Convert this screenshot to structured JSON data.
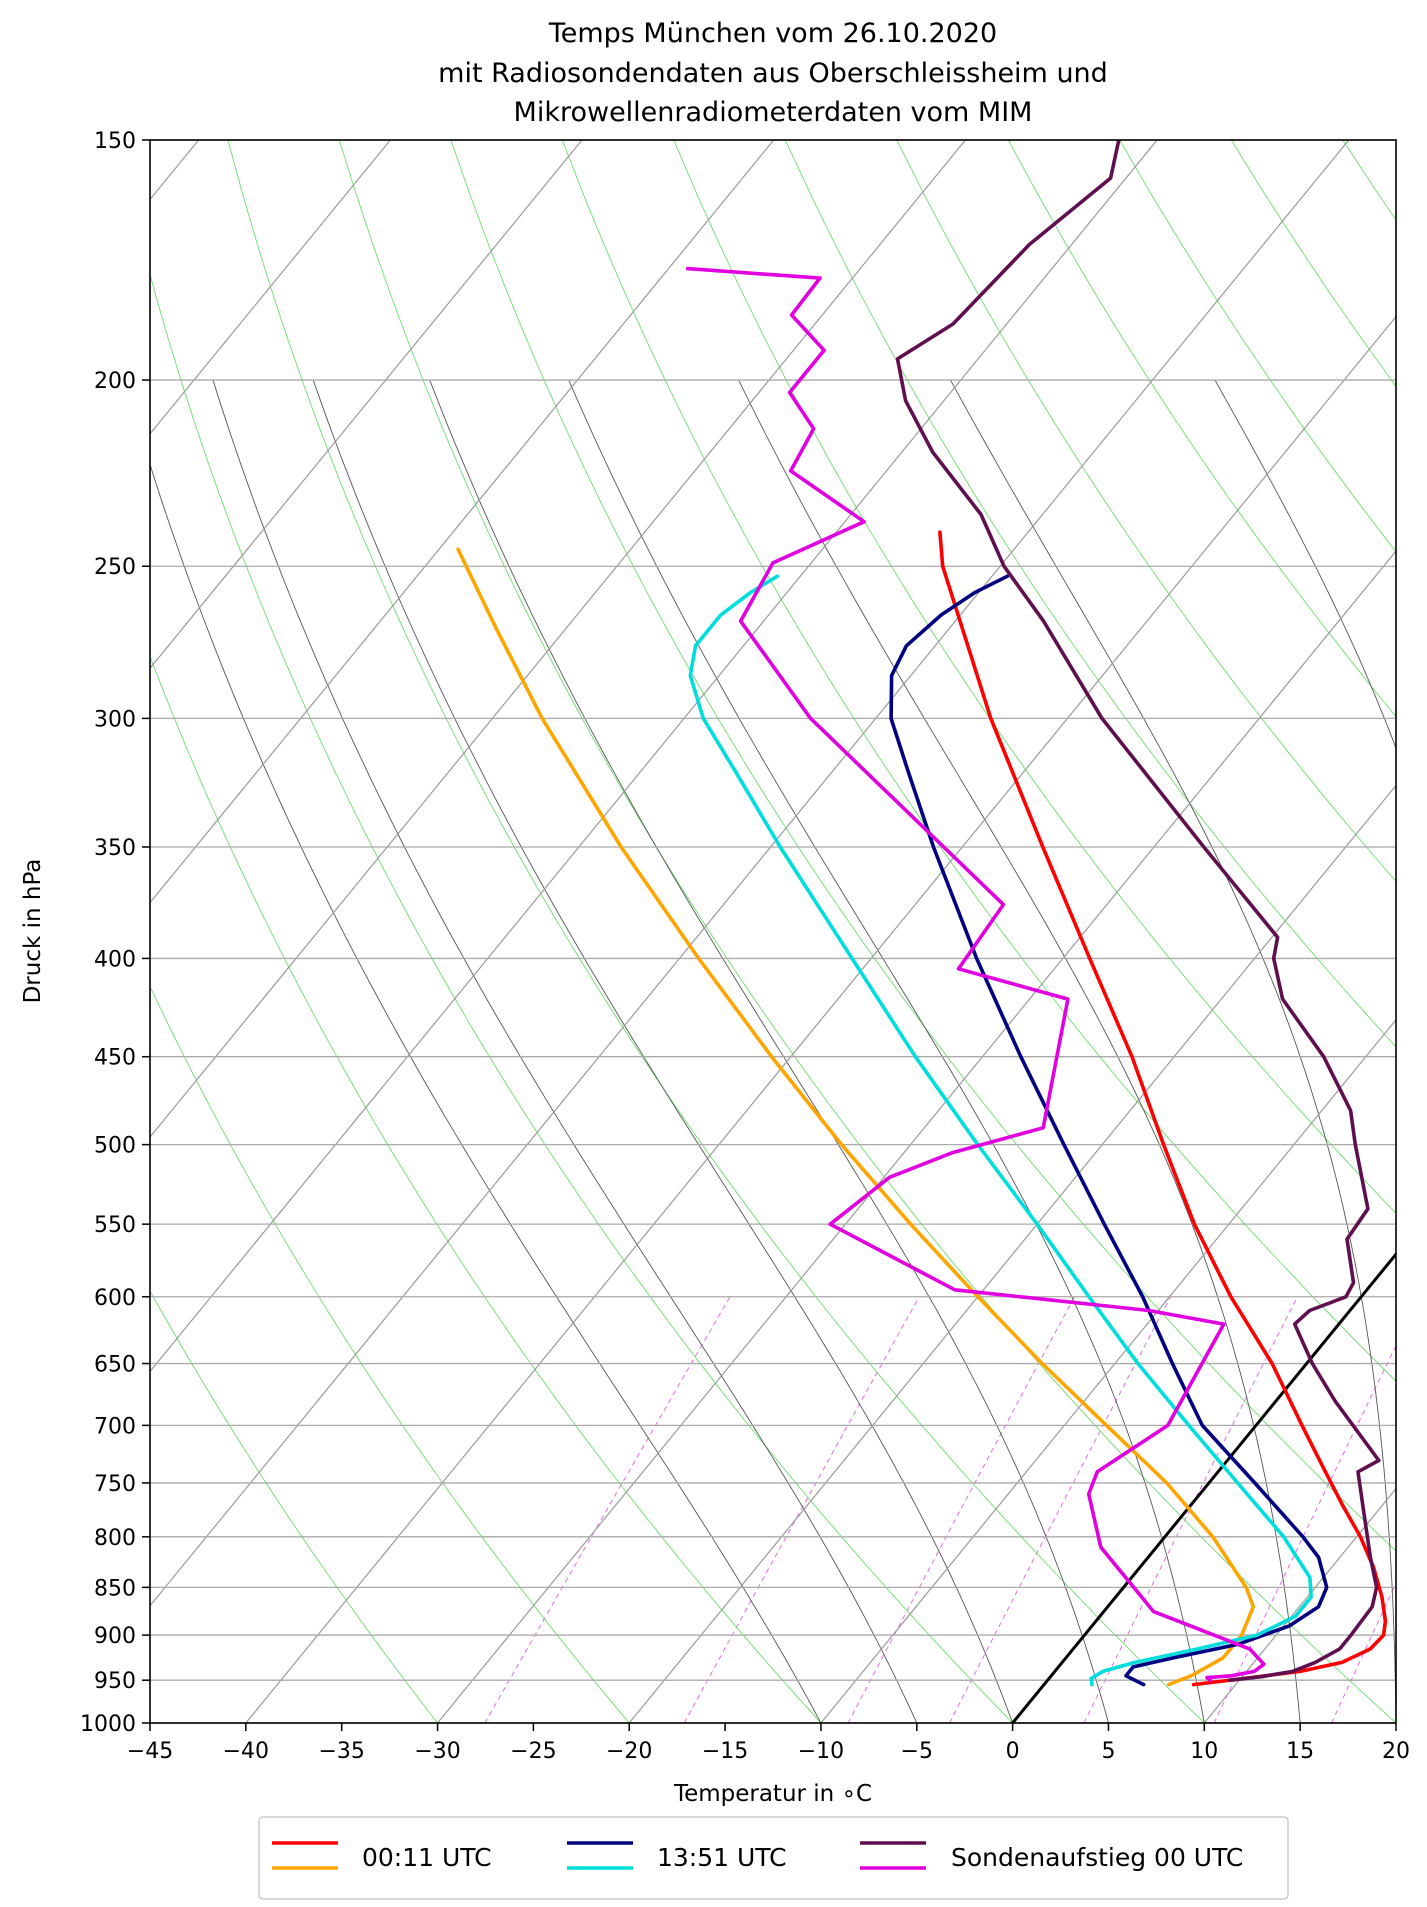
{
  "chart_data": {
    "type": "line",
    "subtype": "skew-T log-p diagram",
    "title_lines": [
      "Temps München vom 26.10.2020",
      "mit Radiosondendaten aus Oberschleissheim und",
      "Mikrowellenradiometerdaten vom MIM"
    ],
    "xlabel": "Temperatur in ∘C",
    "ylabel": "Druck in hPa",
    "xlim": [
      -45,
      20
    ],
    "ylim": [
      1000,
      150
    ],
    "y_scale": "log",
    "x_ticks": [
      -45,
      -40,
      -35,
      -30,
      -25,
      -20,
      -15,
      -10,
      -5,
      0,
      5,
      10,
      15,
      20
    ],
    "x_tick_labels": [
      "−45",
      "−40",
      "−35",
      "−30",
      "−25",
      "−20",
      "−15",
      "−10",
      "−5",
      "0",
      "5",
      "10",
      "15",
      "20"
    ],
    "y_ticks": [
      1000,
      950,
      900,
      850,
      800,
      750,
      700,
      650,
      600,
      550,
      500,
      450,
      400,
      350,
      300,
      250,
      200,
      150
    ],
    "y_tick_labels": [
      "1000",
      "950",
      "900",
      "850",
      "800",
      "750",
      "700",
      "650",
      "600",
      "550",
      "500",
      "450",
      "400",
      "350",
      "300",
      "250",
      "200",
      "150"
    ],
    "skew_deg_per_log_unit": 35.6,
    "background_lines": {
      "isotherms_start_temp": [
        -140,
        -130,
        -120,
        -110,
        -100,
        -90,
        -80,
        -70,
        -60,
        -50,
        -40,
        -30,
        -20,
        -10,
        0,
        10,
        20
      ],
      "isotherm_step": 10,
      "dry_adiabats_theta_C": [
        -30,
        -20,
        -10,
        0,
        10,
        20,
        30,
        40,
        50,
        60,
        70,
        80,
        90,
        100,
        110,
        120,
        130,
        140,
        150,
        160
      ],
      "moist_adiabats_start_C": [
        -10,
        -5,
        0,
        5,
        10,
        15,
        20,
        25,
        30,
        35,
        40
      ],
      "mixing_ratio_g_per_kg": [
        0.4,
        1,
        2,
        3,
        5,
        8,
        12,
        16,
        20
      ]
    },
    "reference_line": {
      "name": "0 °C isotherm",
      "color": "#000000",
      "points": [
        [
          1000,
          0
        ],
        [
          150,
          0
        ]
      ]
    },
    "series": [
      {
        "name": "00:11 UTC Temperatur",
        "color": "#ff0000",
        "points": [
          [
            955,
            7.8
          ],
          [
            948,
            10.2
          ],
          [
            940,
            12.8
          ],
          [
            930,
            14.6
          ],
          [
            915,
            15.5
          ],
          [
            900,
            15.6
          ],
          [
            885,
            15.1
          ],
          [
            860,
            13.9
          ],
          [
            830,
            12.2
          ],
          [
            800,
            10.2
          ],
          [
            770,
            7.9
          ],
          [
            740,
            5.6
          ],
          [
            700,
            2.4
          ],
          [
            650,
            -1.8
          ],
          [
            600,
            -6.8
          ],
          [
            550,
            -11.8
          ],
          [
            500,
            -16.8
          ],
          [
            450,
            -22.2
          ],
          [
            400,
            -28.6
          ],
          [
            350,
            -35.8
          ],
          [
            300,
            -44.0
          ],
          [
            250,
            -53.0
          ],
          [
            240,
            -54.6
          ]
        ]
      },
      {
        "name": "00:11 UTC Taupunkt",
        "color": "#ffa500",
        "points": [
          [
            955,
            6.5
          ],
          [
            945,
            7.3
          ],
          [
            925,
            8.2
          ],
          [
            900,
            8.2
          ],
          [
            870,
            7.6
          ],
          [
            850,
            6.4
          ],
          [
            800,
            2.5
          ],
          [
            750,
            -2.2
          ],
          [
            700,
            -7.8
          ],
          [
            650,
            -13.8
          ],
          [
            600,
            -20.0
          ],
          [
            550,
            -26.6
          ],
          [
            500,
            -33.6
          ],
          [
            450,
            -41.0
          ],
          [
            400,
            -49.0
          ],
          [
            350,
            -57.8
          ],
          [
            300,
            -67.4
          ],
          [
            270,
            -73.5
          ],
          [
            245,
            -79.0
          ]
        ]
      },
      {
        "name": "13:51 UTC Temperatur",
        "color": "#000080",
        "points": [
          [
            955,
            5.2
          ],
          [
            945,
            3.9
          ],
          [
            935,
            3.9
          ],
          [
            925,
            5.6
          ],
          [
            910,
            8.4
          ],
          [
            890,
            10.3
          ],
          [
            870,
            11.0
          ],
          [
            850,
            10.6
          ],
          [
            820,
            8.9
          ],
          [
            800,
            7.2
          ],
          [
            750,
            2.4
          ],
          [
            700,
            -2.8
          ],
          [
            650,
            -7.0
          ],
          [
            600,
            -11.4
          ],
          [
            550,
            -16.5
          ],
          [
            500,
            -22.0
          ],
          [
            450,
            -28.0
          ],
          [
            400,
            -34.5
          ],
          [
            350,
            -41.5
          ],
          [
            320,
            -46.0
          ],
          [
            300,
            -49.2
          ],
          [
            285,
            -51.0
          ],
          [
            275,
            -51.5
          ],
          [
            265,
            -51.0
          ],
          [
            258,
            -50.2
          ],
          [
            253,
            -49.2
          ]
        ]
      },
      {
        "name": "13:51 UTC Taupunkt",
        "color": "#00dddd",
        "points": [
          [
            955,
            2.5
          ],
          [
            948,
            2.2
          ],
          [
            940,
            2.5
          ],
          [
            930,
            3.8
          ],
          [
            915,
            6.5
          ],
          [
            900,
            9.0
          ],
          [
            880,
            10.2
          ],
          [
            860,
            10.2
          ],
          [
            840,
            9.3
          ],
          [
            800,
            6.2
          ],
          [
            750,
            1.5
          ],
          [
            700,
            -3.5
          ],
          [
            650,
            -8.8
          ],
          [
            600,
            -14.2
          ],
          [
            550,
            -20.0
          ],
          [
            500,
            -26.5
          ],
          [
            450,
            -33.5
          ],
          [
            400,
            -41.0
          ],
          [
            350,
            -49.5
          ],
          [
            320,
            -55.0
          ],
          [
            300,
            -59.0
          ],
          [
            285,
            -61.5
          ],
          [
            275,
            -62.5
          ],
          [
            265,
            -62.5
          ],
          [
            258,
            -61.9
          ],
          [
            253,
            -61.2
          ]
        ]
      },
      {
        "name": "Sondenaufstieg 00 UTC Temperatur",
        "color": "#5f0f4f",
        "points": [
          [
            950,
            9.5
          ],
          [
            946,
            11.0
          ],
          [
            940,
            12.4
          ],
          [
            930,
            13.2
          ],
          [
            915,
            13.9
          ],
          [
            900,
            13.9
          ],
          [
            870,
            13.8
          ],
          [
            850,
            13.2
          ],
          [
            820,
            11.6
          ],
          [
            780,
            9.5
          ],
          [
            740,
            7.3
          ],
          [
            730,
            7.9
          ],
          [
            680,
            3.1
          ],
          [
            650,
            0.3
          ],
          [
            620,
            -2.3
          ],
          [
            610,
            -2.1
          ],
          [
            600,
            -0.8
          ],
          [
            590,
            -1.0
          ],
          [
            560,
            -3.2
          ],
          [
            540,
            -3.4
          ],
          [
            500,
            -6.8
          ],
          [
            480,
            -8.5
          ],
          [
            450,
            -12.2
          ],
          [
            420,
            -16.8
          ],
          [
            400,
            -19.0
          ],
          [
            390,
            -19.7
          ],
          [
            350,
            -27.4
          ],
          [
            300,
            -38.2
          ],
          [
            267,
            -45.4
          ],
          [
            250,
            -49.8
          ],
          [
            235,
            -53.2
          ],
          [
            218,
            -58.4
          ],
          [
            205,
            -62.0
          ],
          [
            195,
            -64.2
          ],
          [
            187,
            -62.8
          ],
          [
            170,
            -62.2
          ],
          [
            157,
            -60.8
          ],
          [
            150,
            -62.0
          ]
        ]
      },
      {
        "name": "Sondenaufstieg 00 UTC Taupunkt",
        "color": "#e000e0",
        "points": [
          [
            950,
            8.5
          ],
          [
            947,
            8.2
          ],
          [
            945,
            9.4
          ],
          [
            940,
            10.4
          ],
          [
            932,
            10.6
          ],
          [
            915,
            9.2
          ],
          [
            875,
            2.6
          ],
          [
            810,
            -2.9
          ],
          [
            760,
            -5.8
          ],
          [
            740,
            -6.3
          ],
          [
            700,
            -4.6
          ],
          [
            620,
            -6.0
          ],
          [
            610,
            -10.5
          ],
          [
            595,
            -21.5
          ],
          [
            550,
            -30.8
          ],
          [
            520,
            -29.7
          ],
          [
            505,
            -27.5
          ],
          [
            490,
            -23.8
          ],
          [
            420,
            -28.0
          ],
          [
            405,
            -35.0
          ],
          [
            375,
            -35.4
          ],
          [
            300,
            -53.4
          ],
          [
            267,
            -61.2
          ],
          [
            249,
            -62.0
          ],
          [
            237,
            -59.0
          ],
          [
            223,
            -65.0
          ],
          [
            212,
            -65.6
          ],
          [
            203,
            -68.4
          ],
          [
            193,
            -68.4
          ],
          [
            185,
            -71.6
          ],
          [
            177,
            -71.7
          ],
          [
            175,
            -79.0
          ]
        ]
      }
    ],
    "legend": {
      "location": "bottom-center",
      "columns": [
        {
          "label": "00:11 UTC",
          "colors": [
            "#ff0000",
            "#ffa500"
          ]
        },
        {
          "label": "13:51 UTC",
          "colors": [
            "#000080",
            "#00dddd"
          ]
        },
        {
          "label": "Sondenaufstieg 00 UTC",
          "colors": [
            "#5f0f4f",
            "#e000e0"
          ]
        }
      ]
    }
  }
}
